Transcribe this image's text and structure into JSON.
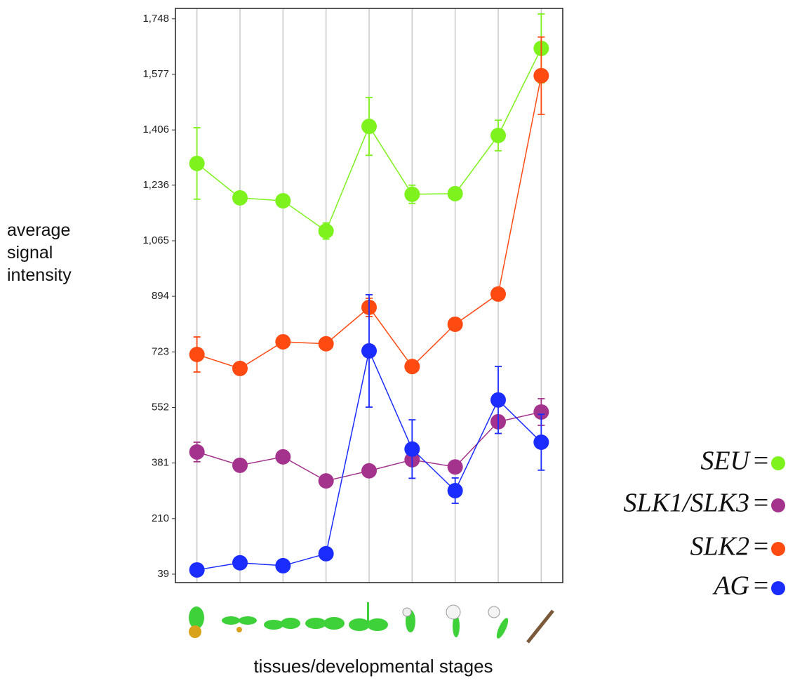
{
  "chart_data": {
    "type": "line",
    "y_label": "average signal intensity",
    "x_label": "tissues/developmental stages",
    "categories": [
      null,
      null,
      null,
      null,
      null,
      null,
      null,
      null,
      null
    ],
    "ylim": [
      13,
      1780
    ],
    "yticks": [
      39,
      210,
      381,
      552,
      723,
      894,
      {
        "value": 1065,
        "label": "1,065"
      },
      {
        "value": 1236,
        "label": "1,236"
      },
      {
        "value": 1406,
        "label": "1,406"
      },
      {
        "value": 1577,
        "label": "1,577"
      },
      {
        "value": 1748,
        "label": "1,748"
      }
    ],
    "grid": true,
    "legend_separator": "=",
    "series": [
      {
        "name": "SEU",
        "color": "#7df21d",
        "values": [
          1303,
          1197,
          1188,
          1095,
          1417,
          1208,
          1210,
          1389,
          1657
        ],
        "errors": [
          110,
          null,
          null,
          25,
          89,
          28,
          null,
          47,
          106
        ]
      },
      {
        "name": "SLK1/SLK3",
        "color": "#a3338c",
        "values": [
          415,
          374,
          400,
          326,
          357,
          391,
          369,
          508,
          538
        ],
        "errors": [
          30,
          null,
          null,
          null,
          null,
          null,
          null,
          null,
          41
        ]
      },
      {
        "name": "SLK2",
        "color": "#ff4a12",
        "values": [
          715,
          672,
          754,
          748,
          860,
          678,
          808,
          901,
          1573
        ],
        "errors": [
          54,
          null,
          null,
          null,
          28,
          null,
          null,
          null,
          119
        ]
      },
      {
        "name": "AG",
        "color": "#1a2cff",
        "values": [
          52,
          74,
          65,
          102,
          726,
          424,
          296,
          575,
          445
        ],
        "errors": [
          null,
          null,
          null,
          null,
          173,
          90,
          39,
          103,
          86
        ]
      }
    ]
  }
}
